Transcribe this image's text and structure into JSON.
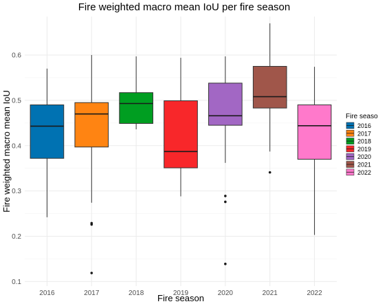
{
  "chart_data": {
    "type": "box",
    "title": "Fire weighted macro mean IoU per fire season",
    "xlabel": "Fire season",
    "ylabel": "Fire weighted macro mean IoU",
    "ylim": [
      0.09,
      0.685
    ],
    "yticks": [
      0.1,
      0.2,
      0.3,
      0.4,
      0.5,
      0.6
    ],
    "ytick_labels": [
      "0.1",
      "0.2",
      "0.3",
      "0.4",
      "0.5",
      "0.6"
    ],
    "grid": true,
    "legend": {
      "title": "Fire season",
      "position": "right"
    },
    "categories": [
      "2016",
      "2017",
      "2018",
      "2019",
      "2020",
      "2021",
      "2022"
    ],
    "series": [
      {
        "name": "2016",
        "color": "#0072B2",
        "min": 0.242,
        "q1": 0.372,
        "median": 0.443,
        "q3": 0.49,
        "max": 0.57,
        "outliers": []
      },
      {
        "name": "2017",
        "color": "#FF8412",
        "min": 0.274,
        "q1": 0.397,
        "median": 0.47,
        "q3": 0.495,
        "max": 0.6,
        "outliers": [
          0.229,
          0.226,
          0.119
        ]
      },
      {
        "name": "2018",
        "color": "#009E21",
        "min": 0.436,
        "q1": 0.449,
        "median": 0.493,
        "q3": 0.517,
        "max": 0.597,
        "outliers": []
      },
      {
        "name": "2019",
        "color": "#F8272A",
        "min": 0.288,
        "q1": 0.351,
        "median": 0.387,
        "q3": 0.499,
        "max": 0.594,
        "outliers": []
      },
      {
        "name": "2020",
        "color": "#A267C4",
        "min": 0.362,
        "q1": 0.445,
        "median": 0.466,
        "q3": 0.538,
        "max": 0.597,
        "outliers": [
          0.289,
          0.276,
          0.139
        ]
      },
      {
        "name": "2021",
        "color": "#A0564A",
        "min": 0.387,
        "q1": 0.483,
        "median": 0.508,
        "q3": 0.575,
        "max": 0.67,
        "outliers": [
          0.341
        ]
      },
      {
        "name": "2022",
        "color": "#FF79CB",
        "min": 0.203,
        "q1": 0.37,
        "median": 0.444,
        "q3": 0.49,
        "max": 0.574,
        "outliers": []
      }
    ]
  }
}
